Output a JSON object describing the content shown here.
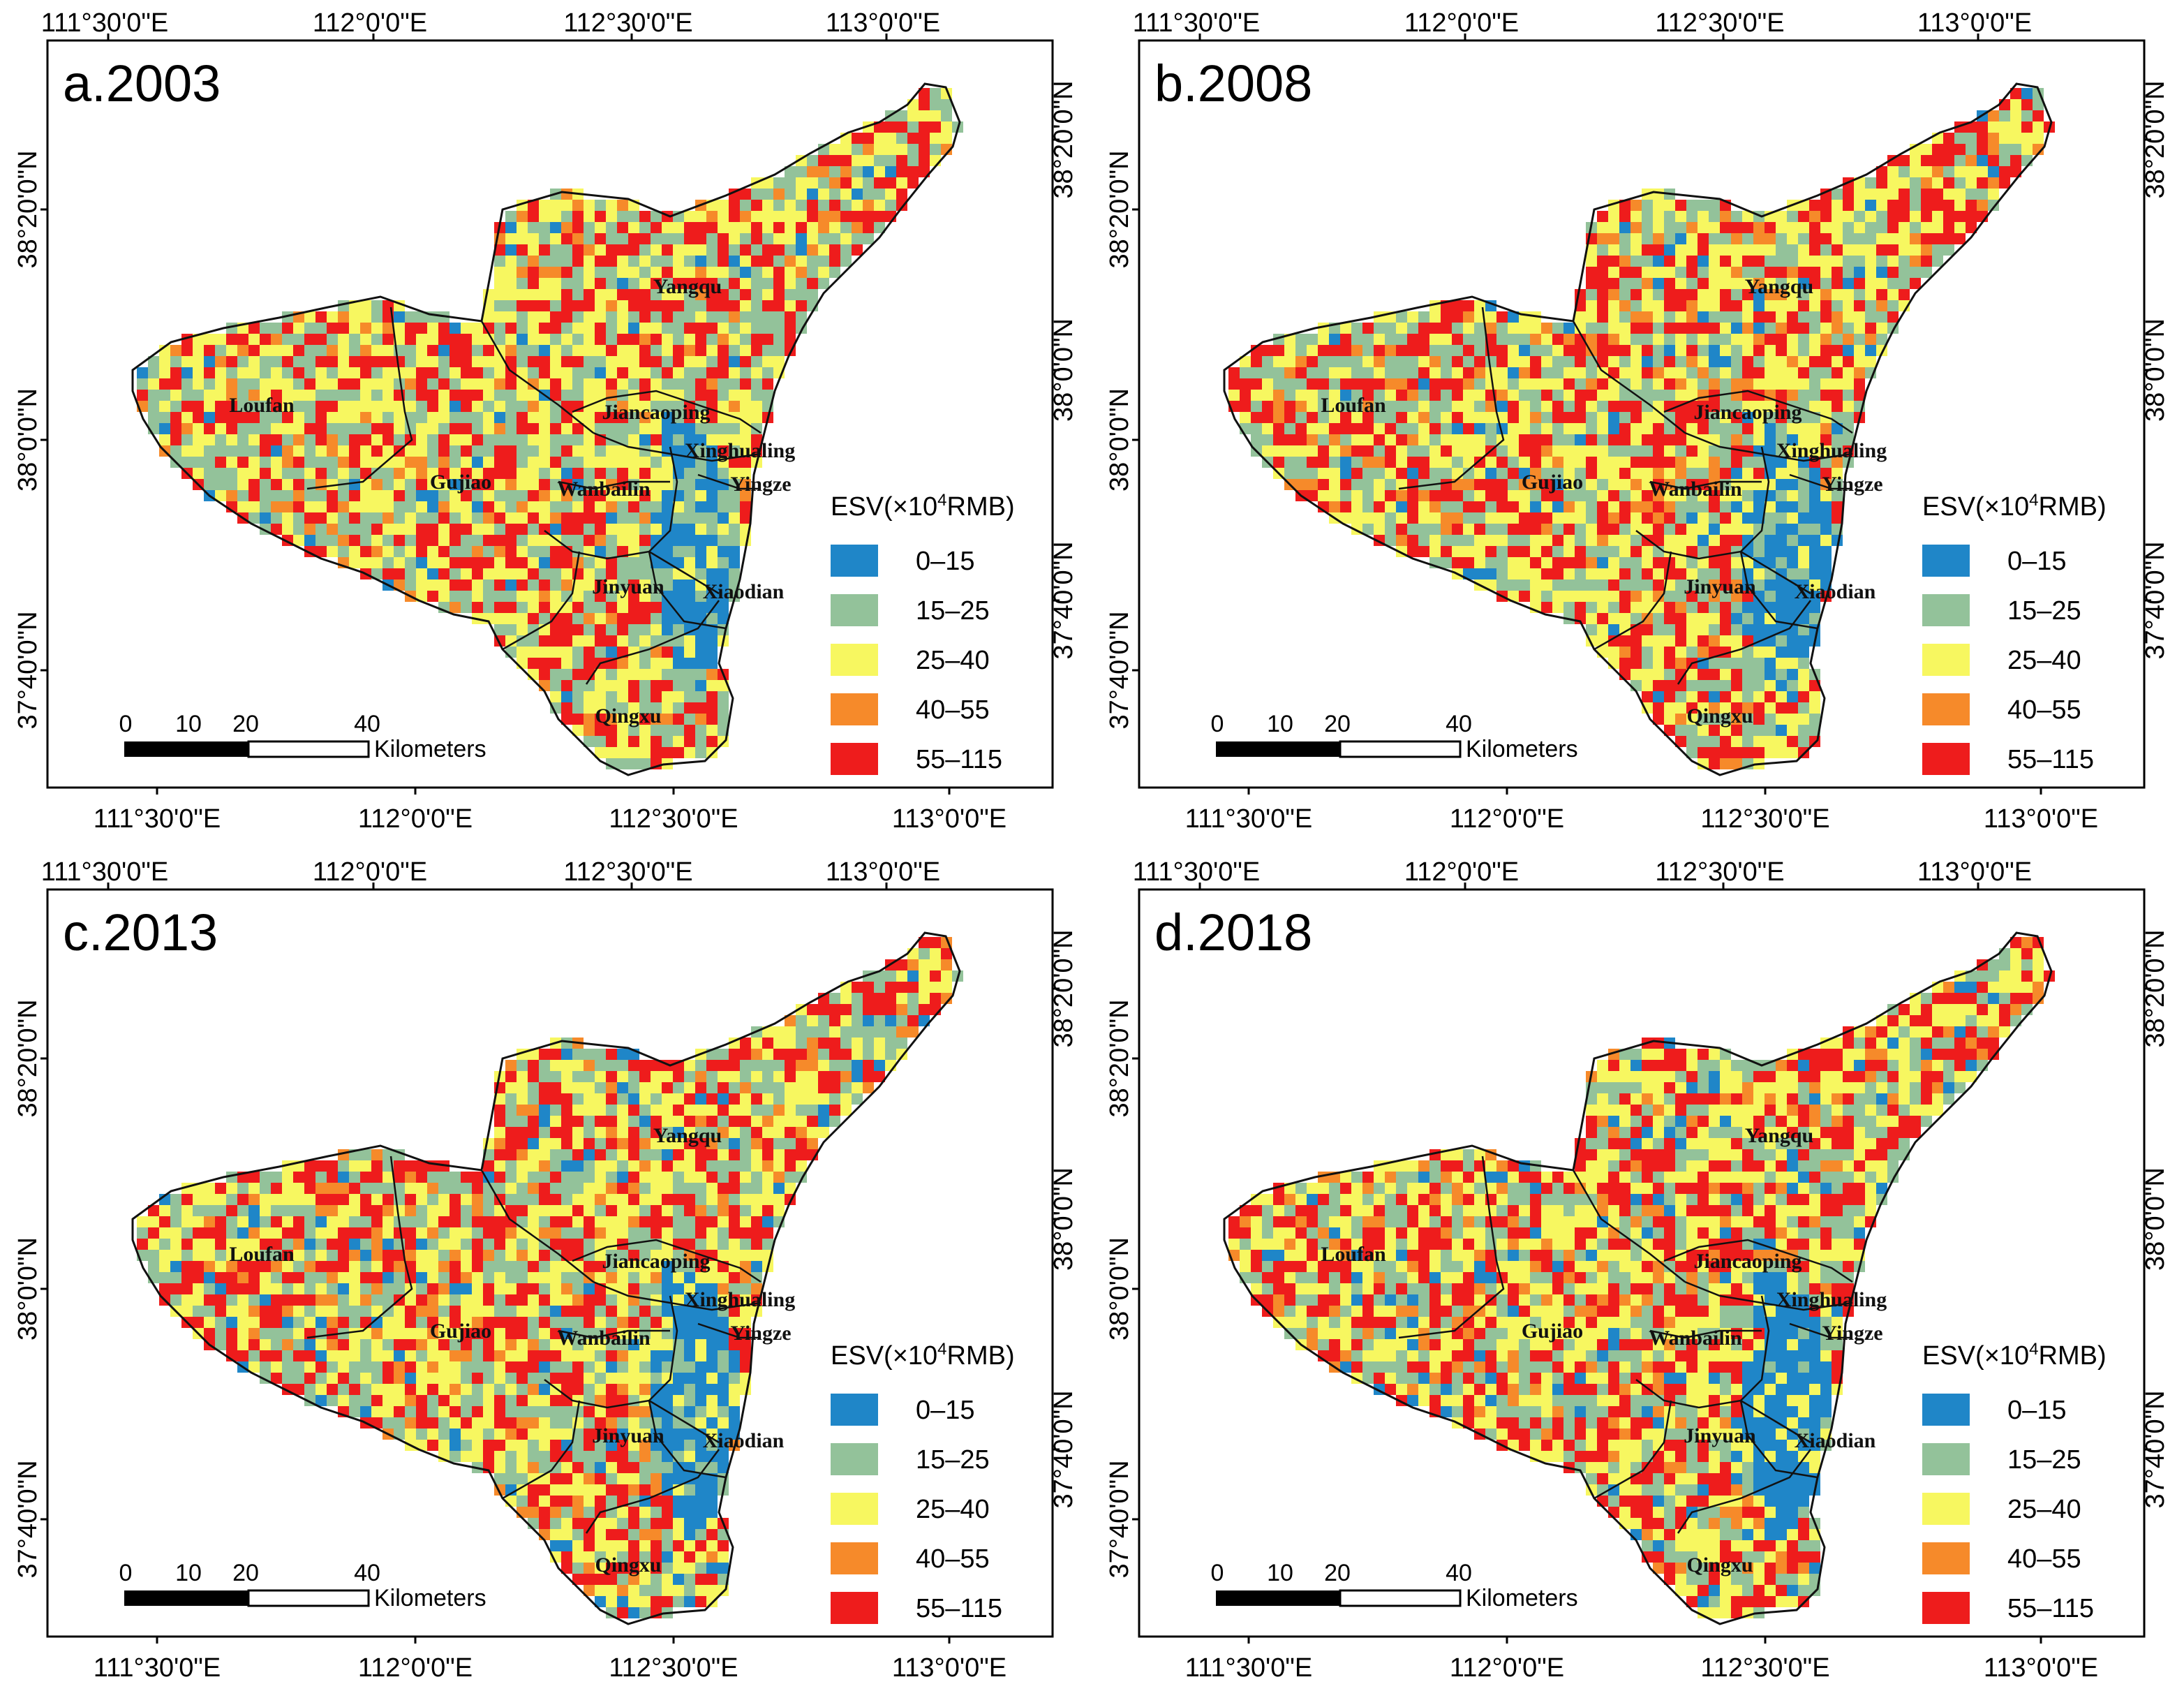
{
  "legend": {
    "title_prefix": "ESV(×10",
    "title_sup": "4",
    "title_suffix": "RMB)",
    "classes": [
      {
        "label": "0–15",
        "color": "#1f86c8"
      },
      {
        "label": "15–25",
        "color": "#93c29a"
      },
      {
        "label": "25–40",
        "color": "#f7f760"
      },
      {
        "label": "40–55",
        "color": "#f68a2a"
      },
      {
        "label": "55–115",
        "color": "#ee1c1c"
      }
    ]
  },
  "axes": {
    "lon_ticks": [
      "111°30'0\"E",
      "112°0'0\"E",
      "112°30'0\"E",
      "113°0'0\"E"
    ],
    "lat_ticks": [
      "38°20'0\"N",
      "38°0'0\"N",
      "37°40'0\"N"
    ]
  },
  "scale_bar": {
    "ticks": [
      "0",
      "10",
      "20",
      "40"
    ],
    "unit": "Kilometers"
  },
  "places": [
    "Yangqu",
    "Loufan",
    "Gujiao",
    "Jiancaoping",
    "Xinghualing",
    "Wanbailin",
    "Yingze",
    "Jinyuan",
    "Xiaodian",
    "Qingxu"
  ],
  "panels": [
    {
      "id": "a",
      "title": "a.2003"
    },
    {
      "id": "b",
      "title": "b.2008"
    },
    {
      "id": "c",
      "title": "c.2013"
    },
    {
      "id": "d",
      "title": "d.2018"
    }
  ]
}
